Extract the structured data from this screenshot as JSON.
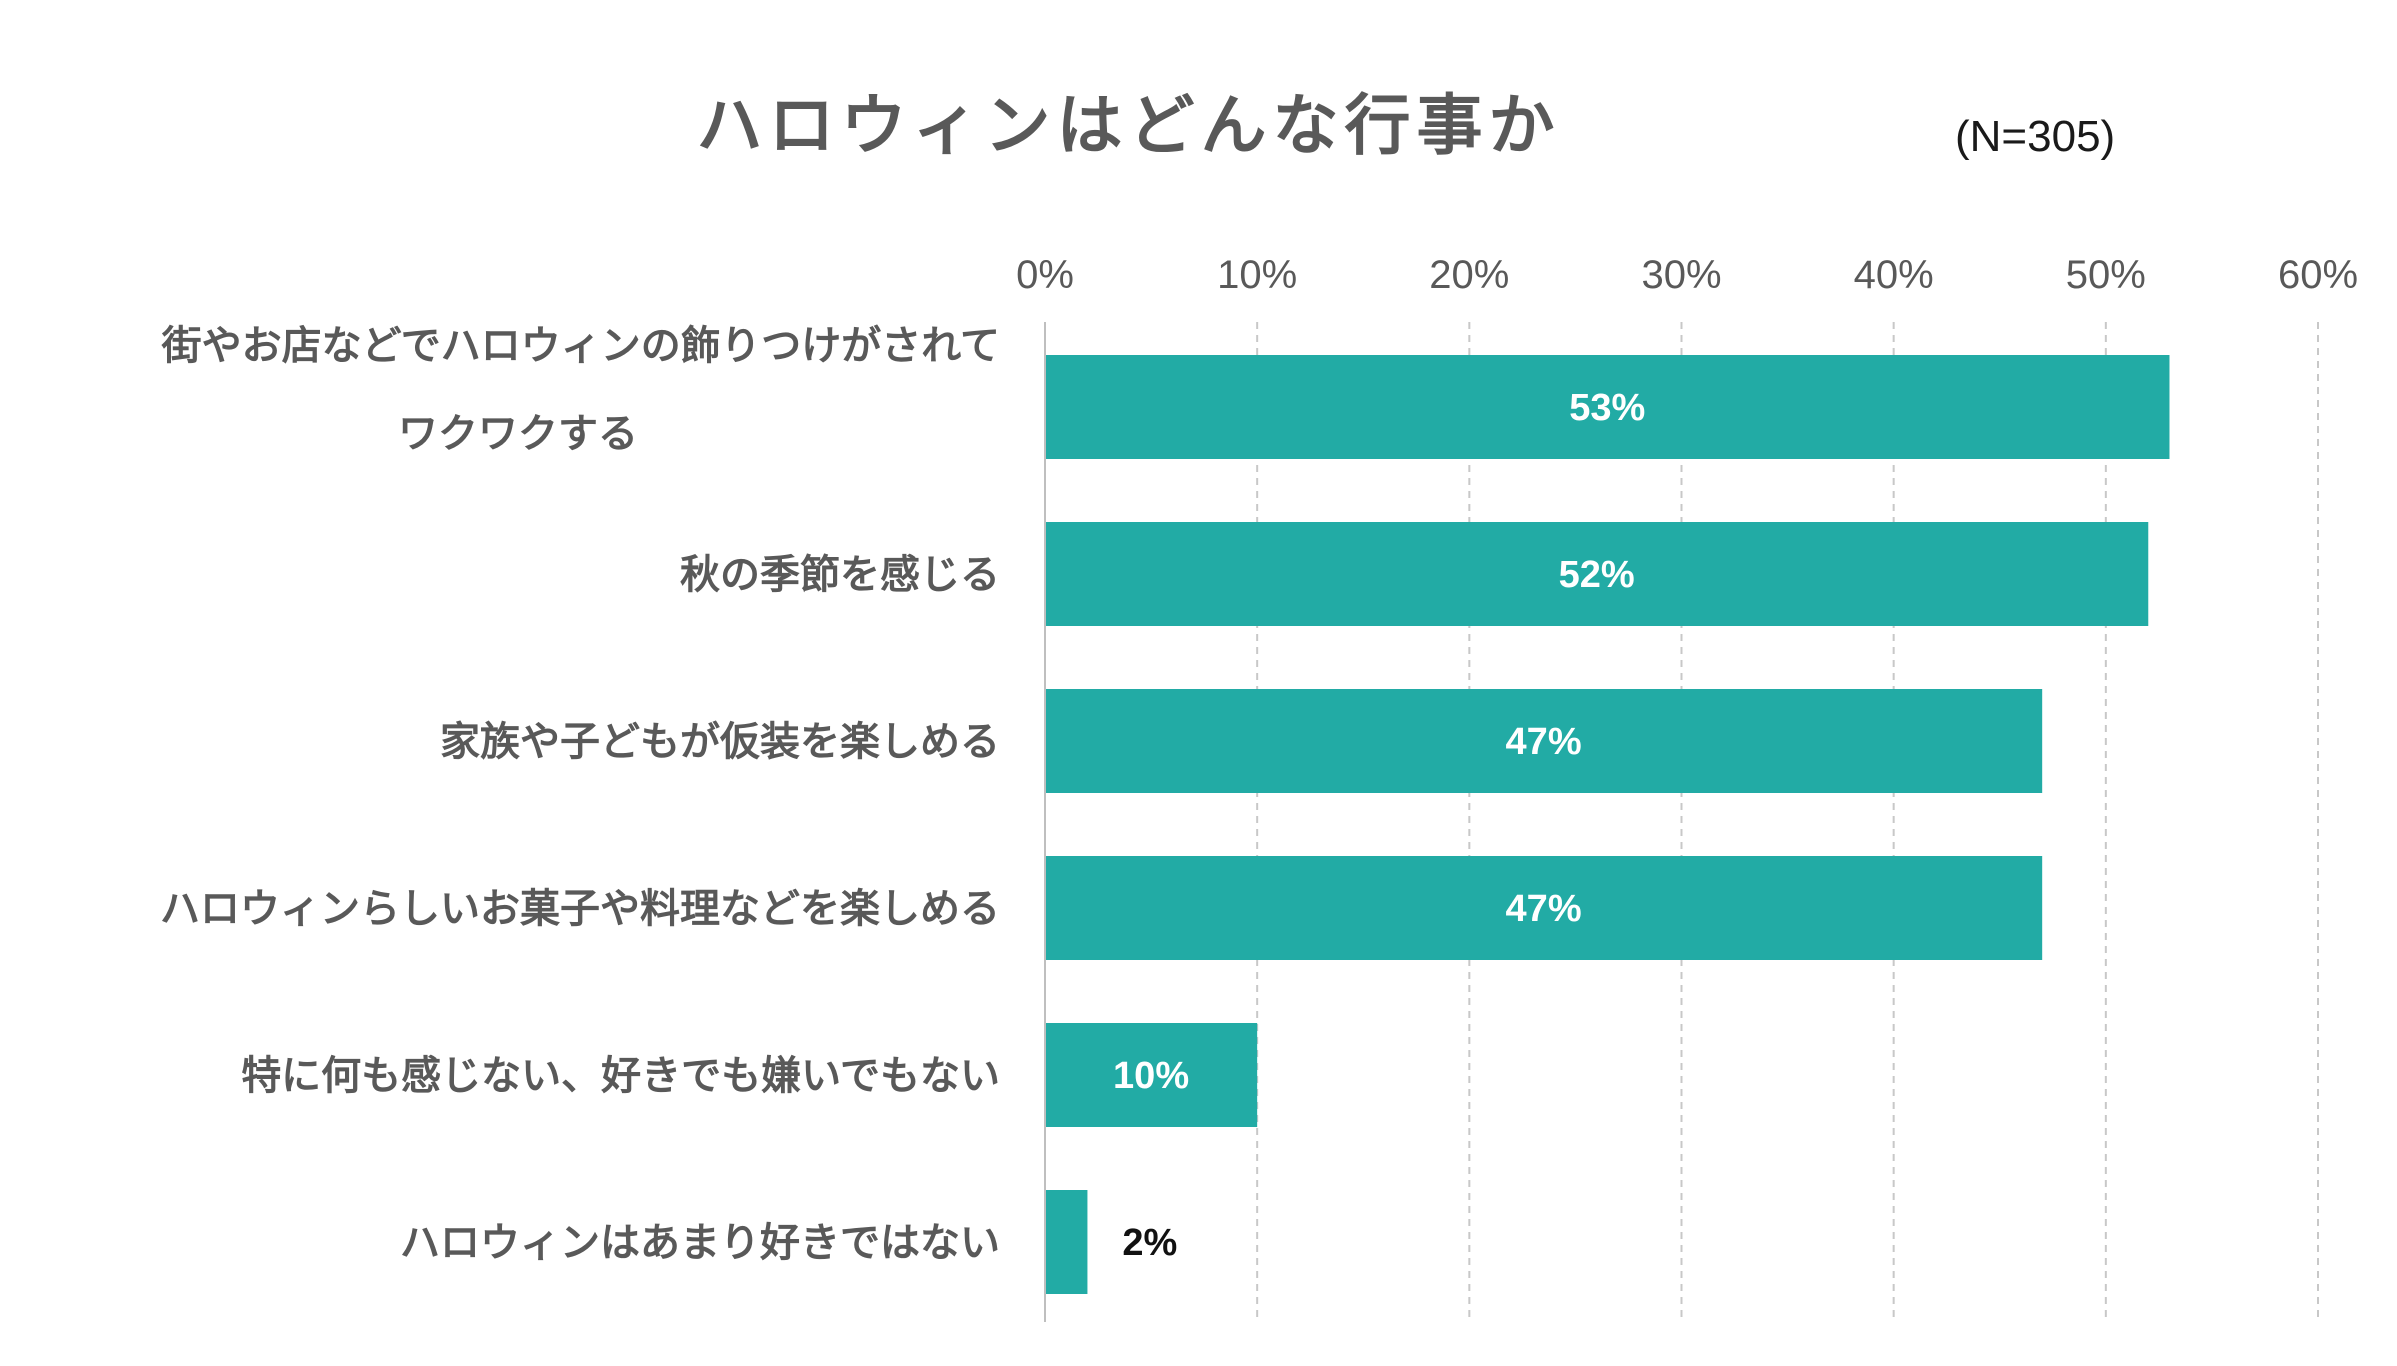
{
  "chart_data": {
    "type": "bar",
    "orientation": "horizontal",
    "title": "ハロウィンはどんな行事か",
    "note": "(N=305)",
    "categories": [
      [
        "街やお店などでハロウィンの飾りつけがされて",
        "ワクワクする"
      ],
      [
        "秋の季節を感じる"
      ],
      [
        "家族や子どもが仮装を楽しめる"
      ],
      [
        "ハロウィンらしいお菓子や料理などを楽しめる"
      ],
      [
        "特に何も感じない、好きでも嫌いでもない"
      ],
      [
        "ハロウィンはあまり好きではない"
      ]
    ],
    "values": [
      53,
      52,
      47,
      47,
      10,
      2
    ],
    "value_labels": [
      "53%",
      "52%",
      "47%",
      "47%",
      "10%",
      "2%"
    ],
    "xlim": [
      0,
      60
    ],
    "xticks": [
      "0%",
      "10%",
      "20%",
      "30%",
      "40%",
      "50%",
      "60%"
    ],
    "grid": "vertical dashed",
    "legend": "none",
    "bar_color": "#22aba5"
  }
}
